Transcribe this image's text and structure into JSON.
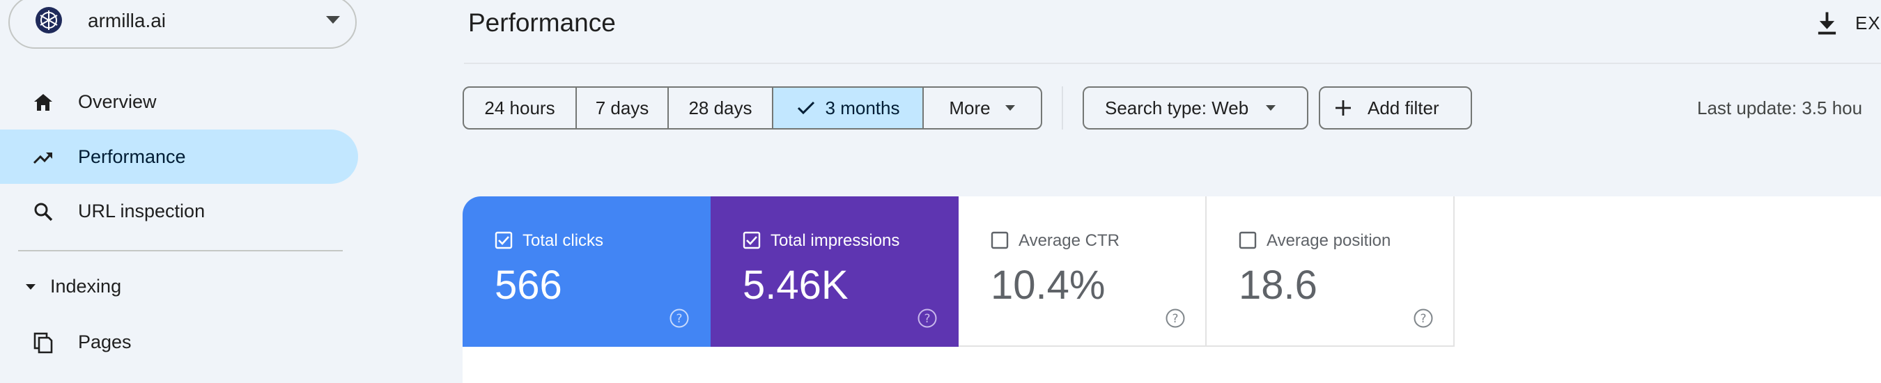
{
  "sidebar": {
    "property": {
      "name": "armilla.ai",
      "logo_icon": "armilla-logo-icon"
    },
    "nav_items": [
      {
        "label": "Overview",
        "icon": "home-icon",
        "active": false
      },
      {
        "label": "Performance",
        "icon": "trending-up-icon",
        "active": true
      },
      {
        "label": "URL inspection",
        "icon": "search-icon",
        "active": false
      }
    ],
    "sections": [
      {
        "label": "Indexing",
        "expanded": true,
        "items": [
          {
            "label": "Pages",
            "icon": "pages-icon"
          }
        ]
      }
    ]
  },
  "header": {
    "title": "Performance",
    "export_label": "EXP"
  },
  "toolbar": {
    "date_ranges": [
      {
        "label": "24 hours",
        "selected": false
      },
      {
        "label": "7 days",
        "selected": false
      },
      {
        "label": "28 days",
        "selected": false
      },
      {
        "label": "3 months",
        "selected": true
      },
      {
        "label": "More",
        "selected": false
      }
    ],
    "search_type_label": "Search type: Web",
    "add_filter_label": "Add filter",
    "last_update": "Last update: 3.5 hou"
  },
  "metrics": [
    {
      "label": "Total clicks",
      "value": "566",
      "checked": true,
      "color": "#4285f4"
    },
    {
      "label": "Total impressions",
      "value": "5.46K",
      "checked": true,
      "color": "#5e35b1"
    },
    {
      "label": "Average CTR",
      "value": "10.4%",
      "checked": false
    },
    {
      "label": "Average position",
      "value": "18.6",
      "checked": false
    }
  ],
  "colors": {
    "background": "#f0f4f9",
    "accent_selected": "#c2e7ff",
    "clicks": "#4285f4",
    "impressions": "#5e35b1"
  }
}
